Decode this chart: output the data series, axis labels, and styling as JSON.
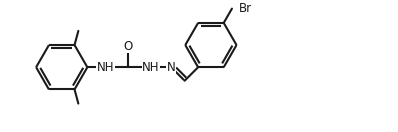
{
  "background_color": "#ffffff",
  "line_color": "#1a1a1a",
  "line_width": 1.5,
  "font_size": 8.5,
  "figsize": [
    3.98,
    1.32
  ],
  "dpi": 100,
  "xlim": [
    0,
    10.5
  ],
  "ylim": [
    0,
    3.5
  ]
}
